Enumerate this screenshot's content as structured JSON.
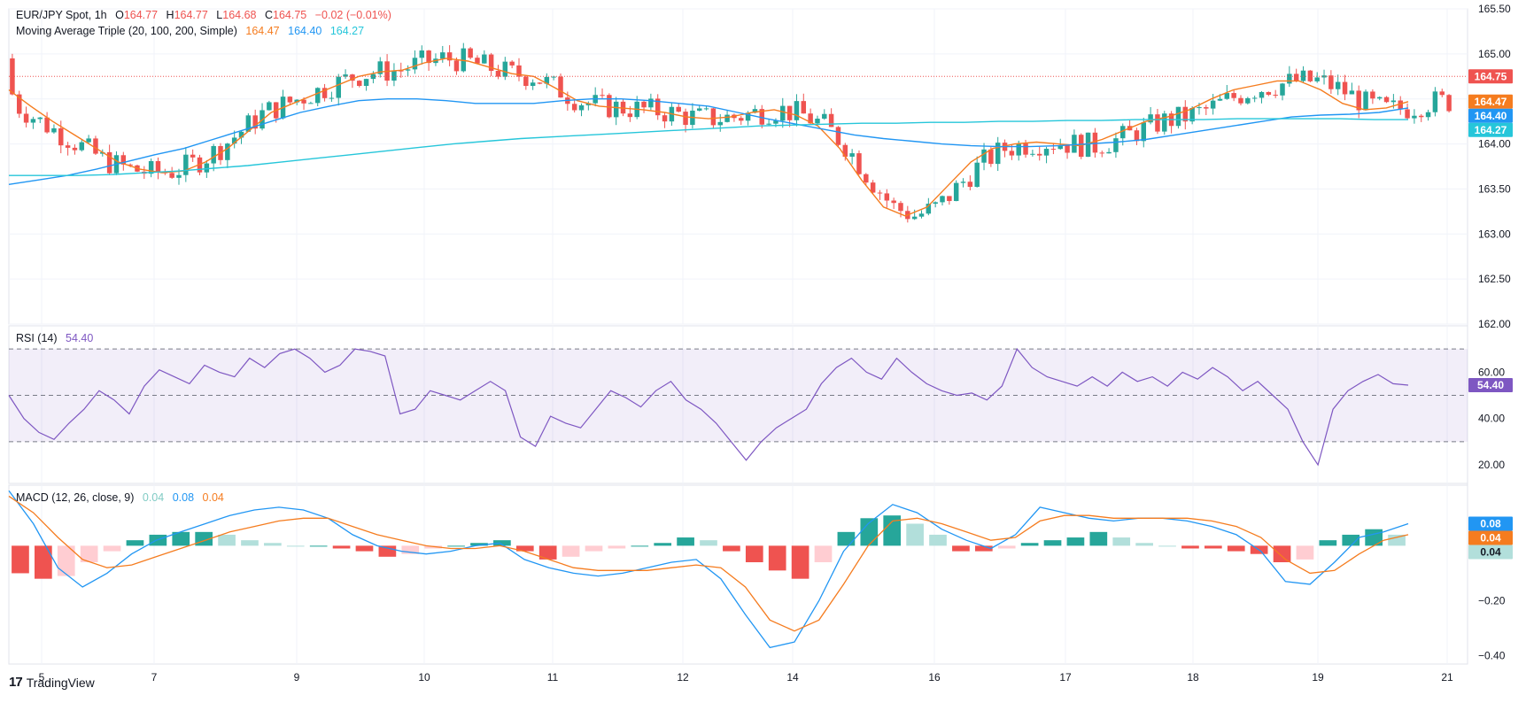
{
  "legend": {
    "symbol": "EUR/JPY Spot, 1h",
    "o_label": "O",
    "o": "164.77",
    "h_label": "H",
    "h": "164.77",
    "l_label": "L",
    "l": "164.68",
    "c_label": "C",
    "c": "164.75",
    "change": "−0.02 (−0.01%)",
    "ma_title": "Moving Average Triple (20, 100, 200, Simple)",
    "ma20": "164.47",
    "ma100": "164.40",
    "ma200": "164.27",
    "rsi_title": "RSI (14)",
    "rsi_value": "54.40",
    "macd_title": "MACD (12, 26, close, 9)",
    "macd_hist": "0.04",
    "macd_line": "0.08",
    "macd_signal": "0.04"
  },
  "brand": {
    "logo": "17",
    "name": "TradingView"
  },
  "colors": {
    "up": "#26a69a",
    "down": "#ef5350",
    "ma20": "#f57c1f",
    "ma100": "#2196f3",
    "ma200": "#26c6da",
    "rsi": "#7e57c2",
    "macd": "#2196f3",
    "signal": "#f57c1f",
    "hist_up_strong": "#26a69a",
    "hist_up_weak": "#b2dfdb",
    "hist_down_strong": "#ef5350",
    "hist_down_weak": "#ffcdd2"
  },
  "price_badges": [
    {
      "label": "164.75",
      "value": 164.75,
      "color": "#ef5350"
    },
    {
      "label": "164.47",
      "value": 164.47,
      "color": "#f57c1f"
    },
    {
      "label": "164.40",
      "value": 164.4,
      "color": "#2196f3"
    },
    {
      "label": "164.27",
      "value": 164.27,
      "color": "#26c6da"
    }
  ],
  "rsi_badge": {
    "label": "54.40",
    "value": 54.4
  },
  "macd_badges": [
    {
      "label": "0.08",
      "value": 0.08,
      "color": "#2196f3"
    },
    {
      "label": "0.04",
      "value": 0.04,
      "color": "#f57c1f"
    },
    {
      "label": "0.04",
      "value": 0.04,
      "color": "#b2dfdb"
    }
  ],
  "chart_data": [
    {
      "type": "candlestick",
      "title": "EUR/JPY Spot, 1h",
      "x_ticks": [
        "5",
        "7",
        "9",
        "10",
        "11",
        "12",
        "14",
        "16",
        "17",
        "18",
        "19",
        "21"
      ],
      "y_ticks": [
        "165.50",
        "165.00",
        "164.50",
        "164.00",
        "163.50",
        "163.00",
        "162.50",
        "162.00"
      ],
      "ylim": [
        162.0,
        165.5
      ],
      "grid": true,
      "last_price": 164.75,
      "overlays": [
        {
          "name": "MA 20",
          "values": [
            164.6,
            164.42,
            164.25,
            164.1,
            163.95,
            163.8,
            163.72,
            163.68,
            163.7,
            163.8,
            163.95,
            164.15,
            164.35,
            164.45,
            164.55,
            164.65,
            164.75,
            164.8,
            164.82,
            164.9,
            164.95,
            164.92,
            164.85,
            164.78,
            164.75,
            164.62,
            164.48,
            164.42,
            164.4,
            164.38,
            164.35,
            164.3,
            164.28,
            164.3,
            164.35,
            164.38,
            164.32,
            164.2,
            163.95,
            163.6,
            163.3,
            163.2,
            163.3,
            163.55,
            163.8,
            163.95,
            164.0,
            164.02,
            164.0,
            163.98,
            164.05,
            164.15,
            164.25,
            164.3,
            164.38,
            164.5,
            164.6,
            164.65,
            164.7,
            164.7,
            164.6,
            164.45,
            164.38,
            164.4,
            164.47
          ]
        },
        {
          "name": "MA 100",
          "values": [
            163.55,
            163.6,
            163.65,
            163.72,
            163.8,
            163.88,
            163.95,
            164.05,
            164.15,
            164.25,
            164.35,
            164.42,
            164.48,
            164.5,
            164.5,
            164.48,
            164.45,
            164.45,
            164.45,
            164.48,
            164.5,
            164.5,
            164.48,
            164.45,
            164.42,
            164.35,
            164.28,
            164.22,
            164.16,
            164.1,
            164.06,
            164.03,
            164.0,
            163.98,
            163.97,
            163.97,
            163.98,
            164.0,
            164.02,
            164.05,
            164.1,
            164.15,
            164.2,
            164.25,
            164.3,
            164.32,
            164.33,
            164.35,
            164.4
          ]
        },
        {
          "name": "MA 200",
          "values": [
            163.65,
            163.65,
            163.65,
            163.66,
            163.68,
            163.7,
            163.73,
            163.76,
            163.8,
            163.84,
            163.88,
            163.92,
            163.96,
            164.0,
            164.03,
            164.06,
            164.08,
            164.1,
            164.12,
            164.14,
            164.16,
            164.18,
            164.2,
            164.21,
            164.22,
            164.23,
            164.23,
            164.24,
            164.24,
            164.25,
            164.25,
            164.26,
            164.26,
            164.27,
            164.27,
            164.27,
            164.28,
            164.28,
            164.28,
            164.28,
            164.27,
            164.27
          ]
        }
      ]
    },
    {
      "type": "line",
      "title": "RSI (14)",
      "y_ticks": [
        "60.00",
        "40.00",
        "20.00"
      ],
      "ylim": [
        12,
        80
      ],
      "bands": [
        30,
        50,
        70
      ],
      "series": [
        {
          "name": "RSI (14)",
          "values": [
            50,
            40,
            34,
            31,
            38,
            44,
            52,
            48,
            42,
            54,
            61,
            58,
            55,
            63,
            60,
            58,
            66,
            62,
            68,
            70,
            66,
            60,
            63,
            70,
            69,
            67,
            42,
            44,
            52,
            50,
            48,
            52,
            56,
            52,
            32,
            28,
            41,
            38,
            36,
            44,
            52,
            49,
            45,
            52,
            56,
            48,
            44,
            38,
            30,
            22,
            30,
            36,
            40,
            44,
            55,
            62,
            66,
            60,
            57,
            66,
            60,
            55,
            52,
            50,
            51,
            48,
            54,
            70,
            62,
            58,
            56,
            54,
            58,
            54,
            60,
            56,
            58,
            54,
            60,
            57,
            62,
            58,
            52,
            56,
            50,
            44,
            30,
            20,
            44,
            52,
            56,
            59,
            55,
            54.4
          ]
        }
      ]
    },
    {
      "type": "bar+line",
      "title": "MACD (12, 26, close, 9)",
      "y_ticks": [
        "−0.20",
        "−0.40"
      ],
      "ylim": [
        -0.43,
        0.22
      ],
      "series": [
        {
          "name": "MACD",
          "values": [
            0.2,
            0.08,
            -0.08,
            -0.15,
            -0.1,
            -0.03,
            0.02,
            0.05,
            0.08,
            0.11,
            0.13,
            0.14,
            0.13,
            0.1,
            0.04,
            0.0,
            -0.02,
            -0.03,
            -0.02,
            0.0,
            0.01,
            -0.05,
            -0.08,
            -0.1,
            -0.11,
            -0.1,
            -0.08,
            -0.06,
            -0.05,
            -0.12,
            -0.25,
            -0.37,
            -0.35,
            -0.2,
            -0.02,
            0.08,
            0.15,
            0.12,
            0.06,
            0.02,
            -0.01,
            0.04,
            0.14,
            0.12,
            0.1,
            0.09,
            0.1,
            0.1,
            0.09,
            0.07,
            0.04,
            -0.02,
            -0.13,
            -0.14,
            -0.06,
            0.03,
            0.05,
            0.08
          ]
        },
        {
          "name": "Signal",
          "values": [
            0.18,
            0.12,
            0.03,
            -0.05,
            -0.08,
            -0.07,
            -0.04,
            -0.01,
            0.02,
            0.05,
            0.07,
            0.09,
            0.1,
            0.1,
            0.07,
            0.04,
            0.02,
            0.0,
            -0.01,
            -0.01,
            0.0,
            -0.02,
            -0.05,
            -0.08,
            -0.09,
            -0.09,
            -0.09,
            -0.08,
            -0.07,
            -0.08,
            -0.15,
            -0.27,
            -0.31,
            -0.27,
            -0.14,
            0.0,
            0.09,
            0.1,
            0.08,
            0.05,
            0.02,
            0.03,
            0.09,
            0.11,
            0.11,
            0.1,
            0.1,
            0.1,
            0.1,
            0.09,
            0.07,
            0.03,
            -0.05,
            -0.1,
            -0.09,
            -0.03,
            0.02,
            0.04
          ]
        },
        {
          "name": "Histogram",
          "values": [
            -0.1,
            -0.12,
            -0.11,
            -0.06,
            -0.02,
            0.02,
            0.04,
            0.05,
            0.05,
            0.04,
            0.02,
            0.01,
            0.0,
            0.0,
            -0.01,
            -0.02,
            -0.04,
            -0.03,
            -0.01,
            0.0,
            0.01,
            0.02,
            -0.02,
            -0.05,
            -0.04,
            -0.02,
            -0.01,
            0.0,
            0.01,
            0.03,
            0.02,
            -0.02,
            -0.06,
            -0.09,
            -0.12,
            -0.06,
            0.05,
            0.1,
            0.11,
            0.08,
            0.04,
            -0.02,
            -0.02,
            -0.01,
            0.01,
            0.02,
            0.03,
            0.05,
            0.03,
            0.01,
            0.0,
            -0.01,
            -0.01,
            -0.02,
            -0.03,
            -0.06,
            -0.05,
            0.02,
            0.04,
            0.06,
            0.04
          ]
        }
      ]
    }
  ]
}
